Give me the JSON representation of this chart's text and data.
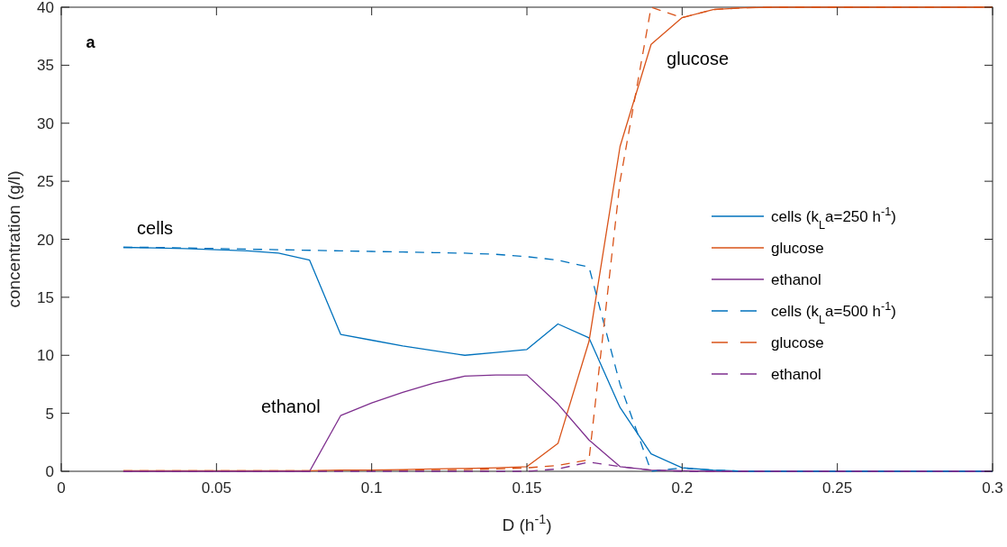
{
  "chart_data": {
    "type": "line",
    "xlabel": "D (h$^{-1}$)",
    "ylabel": "concentration (g/l)",
    "x": [
      0.02,
      0.03,
      0.04,
      0.05,
      0.06,
      0.07,
      0.08,
      0.09,
      0.1,
      0.11,
      0.12,
      0.13,
      0.14,
      0.15,
      0.16,
      0.17,
      0.18,
      0.19,
      0.2,
      0.21,
      0.22,
      0.23,
      0.24,
      0.25,
      0.26,
      0.27,
      0.28,
      0.29,
      0.3
    ],
    "series": [
      {
        "name": "cells (k$_{L}$a=250 h$^{-1}$)",
        "color": "#0072bd",
        "line_style": "solid",
        "values": [
          19.3,
          19.25,
          19.2,
          19.1,
          19.0,
          18.8,
          18.2,
          11.8,
          11.3,
          10.8,
          10.4,
          10.0,
          10.25,
          10.5,
          12.7,
          11.5,
          5.5,
          1.5,
          0.3,
          0.1,
          0,
          0,
          0,
          0,
          0,
          0,
          0,
          0,
          0
        ]
      },
      {
        "name": "glucose",
        "color": "#d95319",
        "line_style": "solid",
        "values": [
          0.05,
          0.05,
          0.05,
          0.05,
          0.05,
          0.05,
          0.05,
          0.1,
          0.1,
          0.15,
          0.2,
          0.25,
          0.3,
          0.4,
          2.4,
          11.2,
          28,
          36.8,
          39.1,
          39.8,
          39.95,
          40,
          40,
          40,
          40,
          40,
          40,
          40,
          40
        ]
      },
      {
        "name": "ethanol",
        "color": "#7e2f8e",
        "line_style": "solid",
        "values": [
          0,
          0,
          0,
          0,
          0,
          0,
          0,
          4.8,
          5.9,
          6.8,
          7.6,
          8.2,
          8.3,
          8.3,
          5.8,
          2.7,
          0.4,
          0.1,
          0.05,
          0,
          0,
          0,
          0,
          0,
          0,
          0,
          0,
          0,
          0
        ]
      },
      {
        "name": "cells (k$_{L}$a=500 h$^{-1}$)",
        "color": "#0072bd",
        "line_style": "dashed",
        "values": [
          19.3,
          19.3,
          19.25,
          19.2,
          19.15,
          19.1,
          19.05,
          19.0,
          18.95,
          18.9,
          18.85,
          18.8,
          18.7,
          18.5,
          18.2,
          17.6,
          7.5,
          0,
          0.3,
          0.1,
          0,
          0,
          0,
          0,
          0,
          0,
          0,
          0,
          0
        ]
      },
      {
        "name": "glucose",
        "color": "#d95319",
        "line_style": "dashed",
        "values": [
          0.05,
          0.05,
          0.05,
          0.05,
          0.05,
          0.05,
          0.05,
          0.05,
          0.1,
          0.1,
          0.15,
          0.15,
          0.2,
          0.3,
          0.5,
          1.0,
          25,
          40,
          39.1,
          39.8,
          39.95,
          40,
          40,
          40,
          40,
          40,
          40,
          40,
          40
        ]
      },
      {
        "name": "ethanol",
        "color": "#7e2f8e",
        "line_style": "dashed",
        "values": [
          0,
          0,
          0,
          0,
          0,
          0,
          0,
          0,
          0,
          0,
          0,
          0,
          0,
          0,
          0.2,
          0.8,
          0.4,
          0.1,
          0,
          0,
          0,
          0,
          0,
          0,
          0,
          0,
          0,
          0,
          0
        ]
      }
    ],
    "xlim": [
      0,
      0.3
    ],
    "xticks": [
      0,
      0.05,
      0.1,
      0.15,
      0.2,
      0.25,
      0.3
    ],
    "ylim": [
      0,
      40
    ],
    "yticks": [
      0,
      5,
      10,
      15,
      20,
      25,
      30,
      35,
      40
    ],
    "grid": false,
    "legend": "right",
    "annotations": [
      "a",
      "cells",
      "ethanol",
      "glucose"
    ]
  }
}
